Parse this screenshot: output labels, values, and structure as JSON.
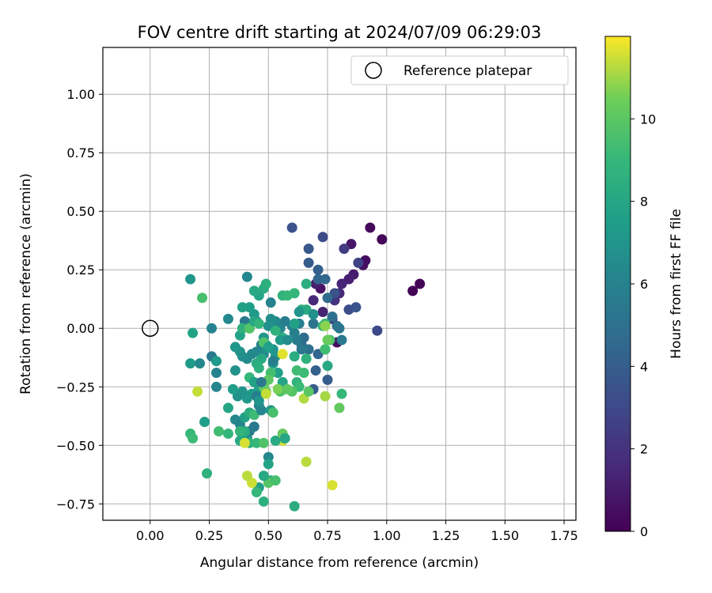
{
  "chart_data": {
    "type": "scatter",
    "title": "FOV centre drift starting at 2024/07/09 06:29:03",
    "xlabel": "Angular distance from reference (arcmin)",
    "ylabel": "Rotation from reference (arcmin)",
    "xlim": [
      -0.2,
      1.8
    ],
    "ylim": [
      -0.82,
      1.2
    ],
    "xticks": [
      0.0,
      0.25,
      0.5,
      0.75,
      1.0,
      1.25,
      1.5,
      1.75
    ],
    "xtick_labels": [
      "0.00",
      "0.25",
      "0.50",
      "0.75",
      "1.00",
      "1.25",
      "1.50",
      "1.75"
    ],
    "yticks": [
      -0.75,
      -0.5,
      -0.25,
      0.0,
      0.25,
      0.5,
      0.75,
      1.0
    ],
    "ytick_labels": [
      "−0.75",
      "−0.50",
      "−0.25",
      "0.00",
      "0.25",
      "0.50",
      "0.75",
      "1.00"
    ],
    "grid": true,
    "legend": {
      "placement": "top-right",
      "entries": [
        "Reference platepar"
      ]
    },
    "reference_point": {
      "x": 0.0,
      "y": 0.0,
      "label": "Reference platepar"
    },
    "colorbar": {
      "label": "Hours from first FF file",
      "colormap": "viridis",
      "range": [
        0,
        12
      ],
      "ticks": [
        0,
        2,
        4,
        6,
        8,
        10
      ],
      "tick_labels": [
        "0",
        "2",
        "4",
        "6",
        "8",
        "10"
      ]
    },
    "points": [
      [
        1.11,
        0.16,
        0.1
      ],
      [
        1.14,
        0.19,
        0.1
      ],
      [
        0.98,
        0.38,
        0.2
      ],
      [
        0.93,
        0.43,
        0.3
      ],
      [
        0.91,
        0.29,
        0.5
      ],
      [
        0.9,
        0.27,
        0.6
      ],
      [
        0.85,
        0.36,
        0.8
      ],
      [
        0.86,
        0.23,
        1.0
      ],
      [
        0.84,
        0.21,
        1.2
      ],
      [
        0.81,
        0.19,
        1.4
      ],
      [
        0.8,
        0.15,
        1.6
      ],
      [
        0.79,
        -0.06,
        0.4
      ],
      [
        0.72,
        0.17,
        0.7
      ],
      [
        0.7,
        0.19,
        1.1
      ],
      [
        0.69,
        0.12,
        1.5
      ],
      [
        0.73,
        0.07,
        1.3
      ],
      [
        0.77,
        0.04,
        1.8
      ],
      [
        0.78,
        0.12,
        2.0
      ],
      [
        0.82,
        0.34,
        2.4
      ],
      [
        0.88,
        0.28,
        2.7
      ],
      [
        0.96,
        -0.01,
        3.0
      ],
      [
        0.84,
        0.08,
        3.2
      ],
      [
        0.87,
        0.09,
        3.6
      ],
      [
        0.78,
        0.15,
        3.4
      ],
      [
        0.73,
        0.39,
        3.1
      ],
      [
        0.6,
        0.43,
        3.5
      ],
      [
        0.67,
        0.34,
        3.7
      ],
      [
        0.67,
        0.28,
        3.9
      ],
      [
        0.71,
        0.25,
        4.1
      ],
      [
        0.71,
        0.21,
        4.3
      ],
      [
        0.74,
        0.21,
        4.5
      ],
      [
        0.75,
        0.13,
        4.7
      ],
      [
        0.77,
        0.05,
        4.9
      ],
      [
        0.79,
        0.01,
        5.1
      ],
      [
        0.8,
        -0.0,
        5.3
      ],
      [
        0.81,
        -0.05,
        5.5
      ],
      [
        0.69,
        0.02,
        5.2
      ],
      [
        0.64,
        -0.07,
        4.6
      ],
      [
        0.65,
        -0.04,
        4.8
      ],
      [
        0.67,
        -0.09,
        5.0
      ],
      [
        0.71,
        -0.11,
        4.4
      ],
      [
        0.7,
        -0.18,
        4.2
      ],
      [
        0.75,
        -0.22,
        4.0
      ],
      [
        0.69,
        -0.26,
        3.8
      ],
      [
        0.64,
        -0.09,
        5.4
      ],
      [
        0.62,
        -0.05,
        5.6
      ],
      [
        0.63,
        0.02,
        5.8
      ],
      [
        0.6,
        0.01,
        6.0
      ],
      [
        0.57,
        0.03,
        5.7
      ],
      [
        0.55,
        0.0,
        6.2
      ],
      [
        0.53,
        0.03,
        6.4
      ],
      [
        0.51,
        0.04,
        6.6
      ],
      [
        0.5,
        0.01,
        6.8
      ],
      [
        0.48,
        -0.04,
        7.0
      ],
      [
        0.47,
        -0.07,
        5.9
      ],
      [
        0.45,
        -0.1,
        6.1
      ],
      [
        0.43,
        -0.11,
        6.3
      ],
      [
        0.41,
        -0.13,
        6.5
      ],
      [
        0.39,
        -0.12,
        6.7
      ],
      [
        0.38,
        -0.1,
        6.9
      ],
      [
        0.36,
        -0.08,
        7.1
      ],
      [
        0.4,
        0.03,
        5.5
      ],
      [
        0.45,
        0.03,
        5.9
      ],
      [
        0.44,
        0.06,
        7.3
      ],
      [
        0.42,
        0.09,
        7.5
      ],
      [
        0.39,
        0.09,
        7.7
      ],
      [
        0.41,
        0.22,
        6.2
      ],
      [
        0.46,
        0.14,
        7.9
      ],
      [
        0.44,
        0.16,
        8.1
      ],
      [
        0.48,
        0.17,
        8.3
      ],
      [
        0.49,
        0.19,
        8.5
      ],
      [
        0.51,
        0.11,
        6.0
      ],
      [
        0.56,
        0.14,
        8.7
      ],
      [
        0.61,
        0.15,
        8.9
      ],
      [
        0.66,
        0.19,
        8.4
      ],
      [
        0.64,
        0.08,
        8.6
      ],
      [
        0.66,
        0.08,
        8.2
      ],
      [
        0.73,
        0.01,
        8.8
      ],
      [
        0.74,
        0.02,
        9.0
      ],
      [
        0.76,
        -0.05,
        9.4
      ],
      [
        0.74,
        -0.09,
        8.0
      ],
      [
        0.66,
        -0.13,
        8.6
      ],
      [
        0.61,
        -0.12,
        8.3
      ],
      [
        0.62,
        -0.18,
        9.3
      ],
      [
        0.65,
        -0.19,
        9.2
      ],
      [
        0.62,
        -0.23,
        8.7
      ],
      [
        0.63,
        -0.25,
        9.1
      ],
      [
        0.6,
        -0.27,
        9.8
      ],
      [
        0.57,
        -0.26,
        9.6
      ],
      [
        0.55,
        -0.27,
        9.7
      ],
      [
        0.56,
        -0.23,
        8.0
      ],
      [
        0.54,
        -0.19,
        7.6
      ],
      [
        0.52,
        -0.15,
        7.4
      ],
      [
        0.53,
        -0.12,
        7.2
      ],
      [
        0.52,
        -0.09,
        7.0
      ],
      [
        0.49,
        -0.07,
        6.8
      ],
      [
        0.48,
        -0.11,
        6.6
      ],
      [
        0.47,
        -0.13,
        8.1
      ],
      [
        0.45,
        -0.15,
        8.3
      ],
      [
        0.46,
        -0.17,
        8.5
      ],
      [
        0.42,
        -0.21,
        8.9
      ],
      [
        0.44,
        -0.23,
        7.8
      ],
      [
        0.46,
        -0.26,
        7.6
      ],
      [
        0.43,
        -0.28,
        7.4
      ],
      [
        0.41,
        -0.3,
        7.2
      ],
      [
        0.39,
        -0.27,
        7.0
      ],
      [
        0.37,
        -0.29,
        6.8
      ],
      [
        0.35,
        -0.26,
        7.5
      ],
      [
        0.33,
        -0.34,
        7.9
      ],
      [
        0.36,
        -0.39,
        6.4
      ],
      [
        0.38,
        -0.41,
        6.1
      ],
      [
        0.4,
        -0.38,
        7.7
      ],
      [
        0.42,
        -0.36,
        8.3
      ],
      [
        0.44,
        -0.37,
        9.2
      ],
      [
        0.46,
        -0.33,
        6.0
      ],
      [
        0.45,
        -0.29,
        5.8
      ],
      [
        0.47,
        -0.35,
        6.2
      ],
      [
        0.44,
        -0.42,
        5.4
      ],
      [
        0.42,
        -0.44,
        5.6
      ],
      [
        0.41,
        -0.47,
        6.6
      ],
      [
        0.39,
        -0.46,
        7.3
      ],
      [
        0.38,
        -0.48,
        8.1
      ],
      [
        0.42,
        -0.49,
        8.7
      ],
      [
        0.45,
        -0.49,
        9.0
      ],
      [
        0.4,
        -0.44,
        8.4
      ],
      [
        0.38,
        -0.44,
        8.8
      ],
      [
        0.33,
        -0.45,
        8.9
      ],
      [
        0.29,
        -0.44,
        9.3
      ],
      [
        0.23,
        -0.4,
        7.5
      ],
      [
        0.24,
        -0.62,
        8.6
      ],
      [
        0.17,
        -0.45,
        9.0
      ],
      [
        0.18,
        -0.47,
        9.2
      ],
      [
        0.17,
        -0.15,
        7.4
      ],
      [
        0.21,
        -0.15,
        6.3
      ],
      [
        0.26,
        -0.12,
        5.5
      ],
      [
        0.28,
        -0.14,
        7.3
      ],
      [
        0.28,
        -0.19,
        6.0
      ],
      [
        0.28,
        -0.25,
        6.2
      ],
      [
        0.33,
        0.04,
        6.4
      ],
      [
        0.26,
        0.0,
        6.0
      ],
      [
        0.18,
        -0.02,
        7.8
      ],
      [
        0.17,
        0.21,
        7.0
      ],
      [
        0.22,
        0.13,
        9.5
      ],
      [
        0.36,
        -0.18,
        6.9
      ],
      [
        0.38,
        -0.03,
        7.8
      ],
      [
        0.39,
        0.0,
        8.6
      ],
      [
        0.42,
        0.0,
        9.2
      ],
      [
        0.42,
        -0.0,
        9.8
      ],
      [
        0.53,
        -0.01,
        8.7
      ],
      [
        0.56,
        -0.04,
        8.4
      ],
      [
        0.55,
        -0.05,
        7.4
      ],
      [
        0.58,
        -0.05,
        6.5
      ],
      [
        0.61,
        -0.02,
        5.9
      ],
      [
        0.46,
        -0.31,
        7.0
      ],
      [
        0.48,
        -0.06,
        9.7
      ],
      [
        0.5,
        -0.08,
        7.6
      ],
      [
        0.52,
        -0.14,
        5.8
      ],
      [
        0.51,
        -0.19,
        9.4
      ],
      [
        0.5,
        -0.22,
        10.0
      ],
      [
        0.48,
        -0.25,
        10.1
      ],
      [
        0.47,
        -0.23,
        5.5
      ],
      [
        0.49,
        -0.27,
        10.3
      ],
      [
        0.51,
        -0.35,
        7.1
      ],
      [
        0.52,
        -0.36,
        9.5
      ],
      [
        0.56,
        -0.45,
        10.2
      ],
      [
        0.56,
        -0.48,
        11.5
      ],
      [
        0.57,
        -0.47,
        8.0
      ],
      [
        0.53,
        -0.48,
        8.2
      ],
      [
        0.5,
        -0.55,
        6.2
      ],
      [
        0.5,
        -0.58,
        7.8
      ],
      [
        0.51,
        -0.65,
        8.6
      ],
      [
        0.5,
        -0.66,
        9.8
      ],
      [
        0.53,
        -0.65,
        9.5
      ],
      [
        0.48,
        -0.63,
        8.1
      ],
      [
        0.46,
        -0.68,
        7.6
      ],
      [
        0.45,
        -0.7,
        9.0
      ],
      [
        0.43,
        -0.66,
        11.5
      ],
      [
        0.41,
        -0.63,
        11.3
      ],
      [
        0.48,
        -0.74,
        8.5
      ],
      [
        0.61,
        -0.76,
        8.3
      ],
      [
        0.4,
        -0.49,
        11.6
      ],
      [
        0.49,
        -0.28,
        11.4
      ],
      [
        0.54,
        -0.26,
        10.6
      ],
      [
        0.58,
        -0.26,
        10.1
      ],
      [
        0.65,
        -0.3,
        11.2
      ],
      [
        0.67,
        -0.27,
        10.0
      ],
      [
        0.74,
        -0.29,
        11.1
      ],
      [
        0.8,
        -0.34,
        10.2
      ],
      [
        0.81,
        -0.28,
        9.0
      ],
      [
        0.75,
        -0.16,
        8.1
      ],
      [
        0.74,
        -0.09,
        9.3
      ],
      [
        0.74,
        0.01,
        10.8
      ],
      [
        0.75,
        -0.05,
        10.3
      ],
      [
        0.56,
        -0.11,
        11.7
      ],
      [
        0.66,
        -0.57,
        11.3
      ],
      [
        0.77,
        -0.67,
        11.6
      ],
      [
        0.2,
        -0.27,
        11.4
      ],
      [
        0.48,
        -0.49,
        9.7
      ],
      [
        0.44,
        0.03,
        8.0
      ],
      [
        0.46,
        0.02,
        8.8
      ],
      [
        0.58,
        0.14,
        9.0
      ],
      [
        0.61,
        0.02,
        7.7
      ],
      [
        0.63,
        0.07,
        7.0
      ],
      [
        0.69,
        0.06,
        6.8
      ]
    ]
  }
}
